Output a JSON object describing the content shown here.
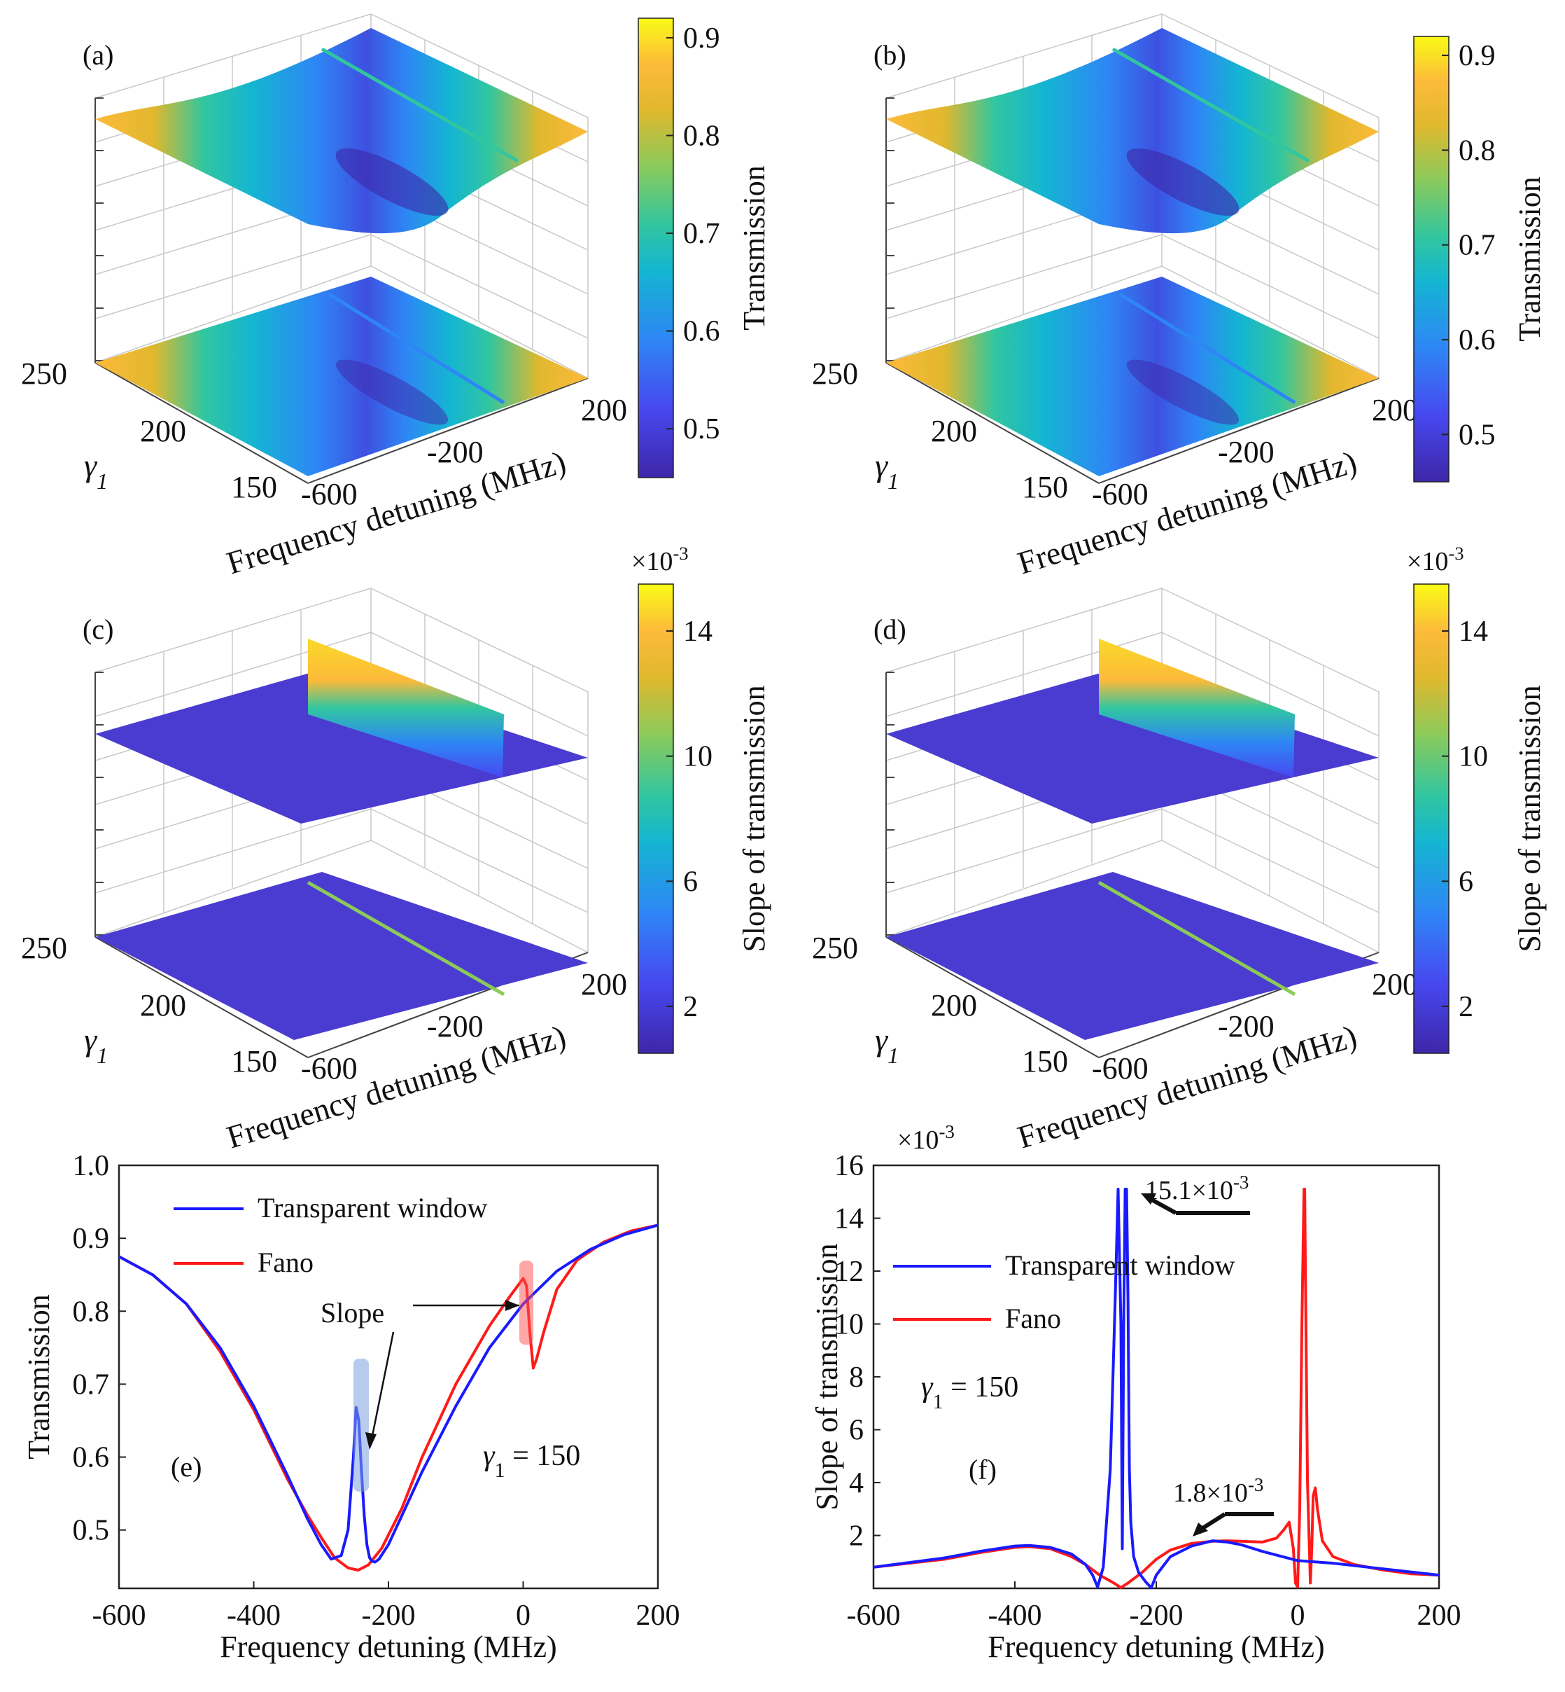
{
  "colors": {
    "blue_series": "#1a1aff",
    "red_series": "#ff1a1a",
    "parula": [
      "#3e26a8",
      "#4748f0",
      "#2e86f5",
      "#14b5d2",
      "#31c69f",
      "#8cca5a",
      "#e0b82e",
      "#fdba3a",
      "#f9fb15"
    ]
  },
  "panels": {
    "a": {
      "label": "(a)",
      "colorbar_label": "Transmission",
      "colorbar_ticks": [
        "0.5",
        "0.6",
        "0.7",
        "0.8",
        "0.9"
      ],
      "colorbar_range": [
        0.45,
        0.92
      ],
      "y_axis_label": "γ1",
      "y_ticks": [
        "250",
        "200",
        "150"
      ],
      "x_ticks": [
        "-600",
        "-200",
        "200"
      ],
      "x_axis_label": "Frequency detuning (MHz)"
    },
    "b": {
      "label": "(b)",
      "colorbar_label": "Transmission",
      "colorbar_ticks": [
        "0.5",
        "0.6",
        "0.7",
        "0.8",
        "0.9"
      ],
      "colorbar_range": [
        0.45,
        0.92
      ],
      "y_axis_label": "γ1",
      "y_ticks": [
        "250",
        "200",
        "150"
      ],
      "x_ticks": [
        "-600",
        "-200",
        "200"
      ],
      "x_axis_label": "Frequency detuning (MHz)"
    },
    "c": {
      "label": "(c)",
      "colorbar_label": "Slope of transmission",
      "colorbar_exponent": "×10-3",
      "colorbar_ticks": [
        "2",
        "6",
        "10",
        "14"
      ],
      "colorbar_range": [
        0.5,
        15.5
      ],
      "y_axis_label": "γ1",
      "y_ticks": [
        "250",
        "200",
        "150"
      ],
      "x_ticks": [
        "-600",
        "-200",
        "200"
      ],
      "x_axis_label": "Frequency detuning (MHz)"
    },
    "d": {
      "label": "(d)",
      "colorbar_label": "Slope of transmission",
      "colorbar_exponent": "×10-3",
      "colorbar_ticks": [
        "2",
        "6",
        "10",
        "14"
      ],
      "colorbar_range": [
        0.5,
        15.5
      ],
      "y_axis_label": "γ1",
      "y_ticks": [
        "250",
        "200",
        "150"
      ],
      "x_ticks": [
        "-600",
        "-200",
        "200"
      ],
      "x_axis_label": "Frequency detuning (MHz)"
    },
    "e": {
      "label": "(e)",
      "xlabel": "Frequency detuning (MHz)",
      "ylabel": "Transmission",
      "x_ticks": [
        "-600",
        "-400",
        "-200",
        "0",
        "200"
      ],
      "y_ticks": [
        "0.5",
        "0.6",
        "0.7",
        "0.8",
        "0.9",
        "1.0"
      ],
      "legend": [
        "Transparent window",
        "Fano"
      ],
      "annotation_slope": "Slope",
      "annotation_gamma": "γ1 = 150"
    },
    "f": {
      "label": "(f)",
      "xlabel": "Frequency detuning (MHz)",
      "ylabel": "Slope of transmission",
      "exponent": "×10-3",
      "x_ticks": [
        "-600",
        "-400",
        "-200",
        "0",
        "200"
      ],
      "y_ticks": [
        "2",
        "4",
        "6",
        "8",
        "10",
        "12",
        "14",
        "16"
      ],
      "legend": [
        "Transparent window",
        "Fano"
      ],
      "annotation_gamma": "γ1 = 150",
      "annotation_peak": "15.1×10-3",
      "annotation_broad": "1.8×10-3"
    }
  },
  "chart_data": [
    {
      "type": "surface",
      "panel": "a",
      "title": "",
      "xlabel": "Frequency detuning (MHz)",
      "ylabel": "γ1",
      "zlabel": "Transmission",
      "xlim": [
        -600,
        200
      ],
      "ylim": [
        150,
        250
      ],
      "clim": [
        0.45,
        0.92
      ],
      "note": "Transparent-window surface and its projection; dip near -250 MHz with narrow transparency line"
    },
    {
      "type": "surface",
      "panel": "b",
      "title": "",
      "xlabel": "Frequency detuning (MHz)",
      "ylabel": "γ1",
      "zlabel": "Transmission",
      "xlim": [
        -600,
        200
      ],
      "ylim": [
        150,
        250
      ],
      "clim": [
        0.45,
        0.92
      ],
      "note": "Fano surface and its projection"
    },
    {
      "type": "surface",
      "panel": "c",
      "title": "",
      "xlabel": "Frequency detuning (MHz)",
      "ylabel": "γ1",
      "zlabel": "Slope of transmission",
      "xlim": [
        -600,
        200
      ],
      "ylim": [
        150,
        250
      ],
      "clim": [
        0.5,
        15.5
      ],
      "exponent": "×10-3"
    },
    {
      "type": "surface",
      "panel": "d",
      "title": "",
      "xlabel": "Frequency detuning (MHz)",
      "ylabel": "γ1",
      "zlabel": "Slope of transmission",
      "xlim": [
        -600,
        200
      ],
      "ylim": [
        150,
        250
      ],
      "clim": [
        0.5,
        15.5
      ],
      "exponent": "×10-3"
    },
    {
      "type": "line",
      "panel": "e",
      "title": "",
      "xlabel": "Frequency detuning (MHz)",
      "ylabel": "Transmission",
      "xlim": [
        -600,
        200
      ],
      "ylim": [
        0.42,
        1.0
      ],
      "series": [
        {
          "name": "Transparent window",
          "color": "#1a1aff",
          "x": [
            -600,
            -550,
            -500,
            -450,
            -400,
            -350,
            -320,
            -300,
            -285,
            -270,
            -260,
            -252,
            -248,
            -244,
            -240,
            -236,
            -232,
            -228,
            -224,
            -220,
            -214,
            -200,
            -180,
            -150,
            -100,
            -50,
            0,
            50,
            100,
            150,
            200
          ],
          "y": [
            0.875,
            0.85,
            0.81,
            0.75,
            0.67,
            0.575,
            0.515,
            0.48,
            0.46,
            0.465,
            0.5,
            0.6,
            0.668,
            0.65,
            0.58,
            0.52,
            0.48,
            0.462,
            0.457,
            0.456,
            0.46,
            0.48,
            0.52,
            0.58,
            0.67,
            0.75,
            0.81,
            0.855,
            0.885,
            0.905,
            0.918
          ]
        },
        {
          "name": "Fano",
          "color": "#ff1a1a",
          "x": [
            -600,
            -550,
            -500,
            -450,
            -400,
            -350,
            -320,
            -300,
            -280,
            -260,
            -245,
            -230,
            -210,
            -180,
            -150,
            -100,
            -50,
            -20,
            0,
            5,
            10,
            15,
            20,
            30,
            50,
            80,
            120,
            160,
            200
          ],
          "y": [
            0.875,
            0.85,
            0.81,
            0.745,
            0.665,
            0.57,
            0.52,
            0.49,
            0.462,
            0.448,
            0.445,
            0.452,
            0.475,
            0.53,
            0.6,
            0.7,
            0.78,
            0.82,
            0.845,
            0.835,
            0.77,
            0.722,
            0.735,
            0.77,
            0.83,
            0.87,
            0.895,
            0.91,
            0.918
          ]
        }
      ]
    },
    {
      "type": "line",
      "panel": "f",
      "title": "",
      "xlabel": "Frequency detuning (MHz)",
      "ylabel": "Slope of transmission",
      "exponent": "×10-3",
      "xlim": [
        -600,
        200
      ],
      "ylim": [
        0,
        16
      ],
      "series": [
        {
          "name": "Transparent window",
          "color": "#1a1aff",
          "x": [
            -600,
            -500,
            -450,
            -400,
            -380,
            -350,
            -320,
            -300,
            -290,
            -283,
            -275,
            -265,
            -258,
            -254,
            -250,
            -248,
            -246,
            -244,
            -242,
            -240,
            -238,
            -236,
            -232,
            -225,
            -215,
            -207,
            -200,
            -180,
            -150,
            -120,
            -100,
            -80,
            -50,
            0,
            50,
            100,
            150,
            200
          ],
          "y": [
            0.8,
            1.15,
            1.4,
            1.6,
            1.62,
            1.55,
            1.3,
            0.9,
            0.5,
            0.05,
            0.8,
            4.5,
            11,
            15.1,
            10,
            1.5,
            10,
            15.1,
            15.1,
            11,
            4.5,
            2.5,
            1.2,
            0.6,
            0.25,
            0.02,
            0.5,
            1.2,
            1.6,
            1.8,
            1.75,
            1.65,
            1.4,
            1.05,
            0.95,
            0.8,
            0.65,
            0.5
          ]
        },
        {
          "name": "Fano",
          "color": "#ff1a1a",
          "x": [
            -600,
            -500,
            -450,
            -400,
            -380,
            -350,
            -320,
            -300,
            -280,
            -260,
            -250,
            -240,
            -220,
            -200,
            -180,
            -150,
            -120,
            -100,
            -80,
            -50,
            -30,
            -20,
            -12,
            -6,
            -3,
            0,
            3,
            6,
            9,
            10,
            11,
            14,
            18,
            20,
            22,
            25,
            28,
            35,
            50,
            80,
            120,
            160,
            200
          ],
          "y": [
            0.8,
            1.1,
            1.35,
            1.55,
            1.58,
            1.5,
            1.2,
            0.9,
            0.5,
            0.2,
            0.03,
            0.2,
            0.6,
            1.1,
            1.45,
            1.7,
            1.78,
            1.8,
            1.78,
            1.75,
            1.9,
            2.2,
            2.5,
            1.5,
            0.2,
            0.05,
            3,
            10,
            15.1,
            15.1,
            12,
            4,
            0.2,
            1.5,
            3.5,
            3.8,
            3,
            1.8,
            1.2,
            0.9,
            0.7,
            0.55,
            0.5
          ]
        }
      ]
    }
  ]
}
